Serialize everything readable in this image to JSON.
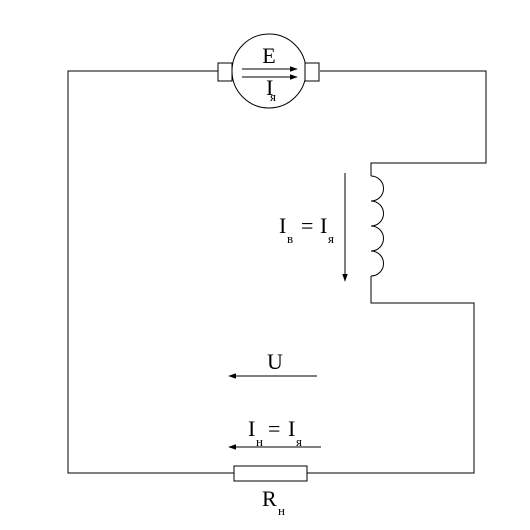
{
  "generator": {
    "emf_label": "E",
    "armature_current_label": "I",
    "armature_current_sub": "я"
  },
  "field_winding": {
    "current_label": "I",
    "current_sub": "в",
    "equals": "=",
    "armature_label": "I",
    "armature_sub": "я"
  },
  "voltage": {
    "label": "U"
  },
  "load_current": {
    "label": "I",
    "label_sub": "н",
    "equals": "=",
    "armature_label": "I",
    "armature_sub": "я"
  },
  "load_resistor": {
    "label": "R",
    "label_sub": "н"
  }
}
